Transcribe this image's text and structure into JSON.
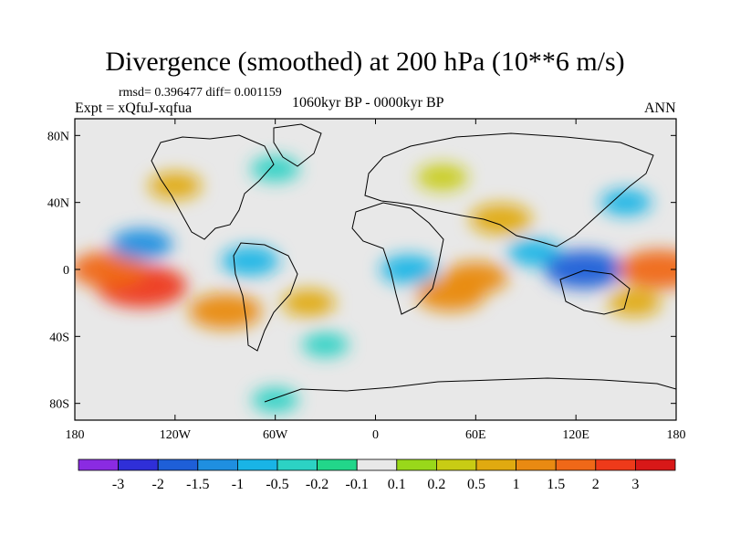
{
  "chart_data": {
    "type": "heatmap",
    "title": "Divergence (smoothed) at 200 hPa (10**6 m/s)",
    "stats_text": "rmsd= 0.396477 diff= 0.001159",
    "experiment_text": "Expt = xQfuJ-xqfua",
    "period_text": "1060kyr BP - 0000kyr BP",
    "season_text": "ANN",
    "x_ticks": [
      "180",
      "120W",
      "60W",
      "0",
      "60E",
      "120E",
      "180"
    ],
    "x_tick_values": [
      -180,
      -120,
      -60,
      0,
      60,
      120,
      180
    ],
    "y_ticks": [
      "80N",
      "40N",
      "0",
      "40S",
      "80S"
    ],
    "y_tick_values": [
      80,
      40,
      0,
      -40,
      -80
    ],
    "xlim": [
      -180,
      180
    ],
    "ylim": [
      -90,
      90
    ],
    "colorbar": {
      "labels": [
        "-3",
        "-2",
        "-1.5",
        "-1",
        "-0.5",
        "-0.2",
        "-0.1",
        "0.1",
        "0.2",
        "0.5",
        "1",
        "1.5",
        "2",
        "3"
      ],
      "colors": [
        "#8a2be2",
        "#2f2fd8",
        "#1e5fd8",
        "#1f8fe0",
        "#19b4e6",
        "#2cd2c4",
        "#22d68a",
        "#e8e8e8",
        "#99d81a",
        "#c8cc14",
        "#e0aa10",
        "#e98a12",
        "#f06818",
        "#ee3a1a",
        "#d81818"
      ]
    },
    "anomaly_regions": [
      {
        "lon": -140,
        "lat": -10,
        "value": 2.3
      },
      {
        "lon": -160,
        "lat": 0,
        "value": 1.6
      },
      {
        "lon": -90,
        "lat": -25,
        "value": 1.5
      },
      {
        "lon": -140,
        "lat": 15,
        "value": -1.0
      },
      {
        "lon": -75,
        "lat": 5,
        "value": -0.8
      },
      {
        "lon": -40,
        "lat": -20,
        "value": 0.6
      },
      {
        "lon": 20,
        "lat": 0,
        "value": -0.8
      },
      {
        "lon": 45,
        "lat": -15,
        "value": 1.3
      },
      {
        "lon": 60,
        "lat": -5,
        "value": 1.1
      },
      {
        "lon": 75,
        "lat": 30,
        "value": 1.0
      },
      {
        "lon": 95,
        "lat": 10,
        "value": -0.6
      },
      {
        "lon": 125,
        "lat": 0,
        "value": -1.8
      },
      {
        "lon": 170,
        "lat": 0,
        "value": 1.9
      },
      {
        "lon": 155,
        "lat": -20,
        "value": 0.6
      },
      {
        "lon": -120,
        "lat": 50,
        "value": 0.6
      },
      {
        "lon": -60,
        "lat": 60,
        "value": -0.4
      },
      {
        "lon": 40,
        "lat": 55,
        "value": 0.5
      },
      {
        "lon": 150,
        "lat": 40,
        "value": -0.5
      },
      {
        "lon": -30,
        "lat": -45,
        "value": -0.3
      },
      {
        "lon": -60,
        "lat": -78,
        "value": -0.3
      }
    ]
  }
}
